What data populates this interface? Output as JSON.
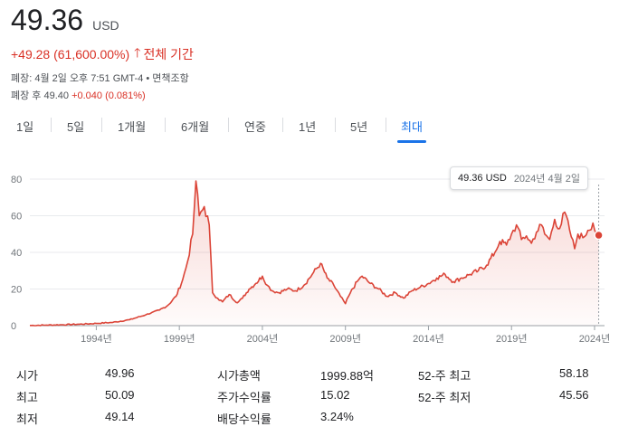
{
  "quote": {
    "price": "49.36",
    "currency": "USD",
    "change": "+49.28 (61,600.00%)",
    "arrow_icon": "arrow-up-icon",
    "period": "전체 기간",
    "closed_info": "폐장: 4월 2일 오후 7:51 GMT-4 • 면책조항",
    "after_hours_label": "폐장 후 49.40",
    "after_hours_change": "+0.040 (0.081%)",
    "colors": {
      "down": "#d93025",
      "accent": "#1a73e8",
      "line": "#db4437"
    }
  },
  "tabs": [
    {
      "label": "1일",
      "active": false
    },
    {
      "label": "5일",
      "active": false
    },
    {
      "label": "1개월",
      "active": false
    },
    {
      "label": "6개월",
      "active": false
    },
    {
      "label": "연중",
      "active": false
    },
    {
      "label": "1년",
      "active": false
    },
    {
      "label": "5년",
      "active": false
    },
    {
      "label": "최대",
      "active": true
    }
  ],
  "tooltip": {
    "price": "49.36 USD",
    "date": "2024년 4월 2일"
  },
  "chart_data": {
    "type": "area",
    "title": "",
    "xlabel": "",
    "ylabel": "",
    "ylim": [
      0,
      80
    ],
    "y_ticks": [
      "0",
      "20",
      "40",
      "60",
      "80"
    ],
    "x_ticks": [
      "1994년",
      "1999년",
      "2004년",
      "2009년",
      "2014년",
      "2019년",
      "2024년"
    ],
    "x_tick_values": [
      1994,
      1999,
      2004,
      2009,
      2014,
      2019,
      2024
    ],
    "xlim": [
      1990.0,
      2024.6
    ],
    "grid": true,
    "series": [
      {
        "values_x": [
          1990.0,
          1991.0,
          1992.0,
          1993.0,
          1994.0,
          1995.0,
          1996.0,
          1997.0,
          1997.8,
          1998.3,
          1998.8,
          1999.2,
          1999.5,
          1999.8,
          2000.0,
          2000.2,
          2000.5,
          2000.8,
          2001.0,
          2001.3,
          2001.6,
          2002.0,
          2002.5,
          2002.8,
          2003.2,
          2003.6,
          2004.0,
          2004.3,
          2004.6,
          2005.0,
          2005.5,
          2006.0,
          2006.5,
          2007.0,
          2007.5,
          2007.9,
          2008.3,
          2008.7,
          2009.0,
          2009.3,
          2009.7,
          2010.0,
          2010.5,
          2011.0,
          2011.5,
          2012.0,
          2012.5,
          2013.0,
          2013.5,
          2014.0,
          2014.5,
          2015.0,
          2015.5,
          2016.0,
          2016.5,
          2017.0,
          2017.5,
          2018.0,
          2018.3,
          2018.7,
          2019.0,
          2019.3,
          2019.6,
          2019.9,
          2020.2,
          2020.5,
          2020.8,
          2021.0,
          2021.3,
          2021.6,
          2021.9,
          2022.2,
          2022.5,
          2022.8,
          2023.0,
          2023.3,
          2023.6,
          2023.9,
          2024.1,
          2024.25
        ],
        "values_y": [
          0.1,
          0.3,
          0.5,
          0.8,
          1.2,
          1.8,
          3.2,
          6.0,
          8.5,
          11.0,
          16.0,
          25.0,
          35.0,
          50.0,
          79.0,
          60.0,
          65.0,
          55.0,
          18.0,
          15.0,
          13.0,
          17.0,
          12.5,
          15.0,
          20.0,
          23.0,
          27.0,
          22.0,
          19.0,
          18.0,
          20.0,
          19.0,
          22.0,
          28.0,
          34.0,
          26.0,
          22.0,
          16.0,
          12.0,
          18.0,
          24.0,
          27.0,
          23.0,
          20.0,
          16.0,
          18.0,
          15.0,
          19.0,
          21.0,
          23.0,
          26.0,
          28.0,
          24.0,
          26.0,
          28.0,
          30.0,
          33.0,
          40.0,
          46.0,
          44.0,
          50.0,
          55.0,
          47.0,
          49.0,
          45.0,
          51.0,
          55.0,
          50.0,
          47.0,
          58.0,
          53.0,
          62.0,
          52.0,
          42.0,
          50.0,
          48.0,
          52.0,
          56.0,
          50.0,
          49.36
        ]
      }
    ]
  },
  "stats": [
    {
      "label": "시가",
      "value": "49.96"
    },
    {
      "label": "최고",
      "value": "50.09"
    },
    {
      "label": "최저",
      "value": "49.14"
    },
    {
      "label": "시가총액",
      "value": "1999.88억"
    },
    {
      "label": "주가수익률",
      "value": "15.02"
    },
    {
      "label": "배당수익률",
      "value": "3.24%"
    },
    {
      "label": "52-주 최고",
      "value": "58.18"
    },
    {
      "label": "52-주 최저",
      "value": "45.56"
    }
  ]
}
